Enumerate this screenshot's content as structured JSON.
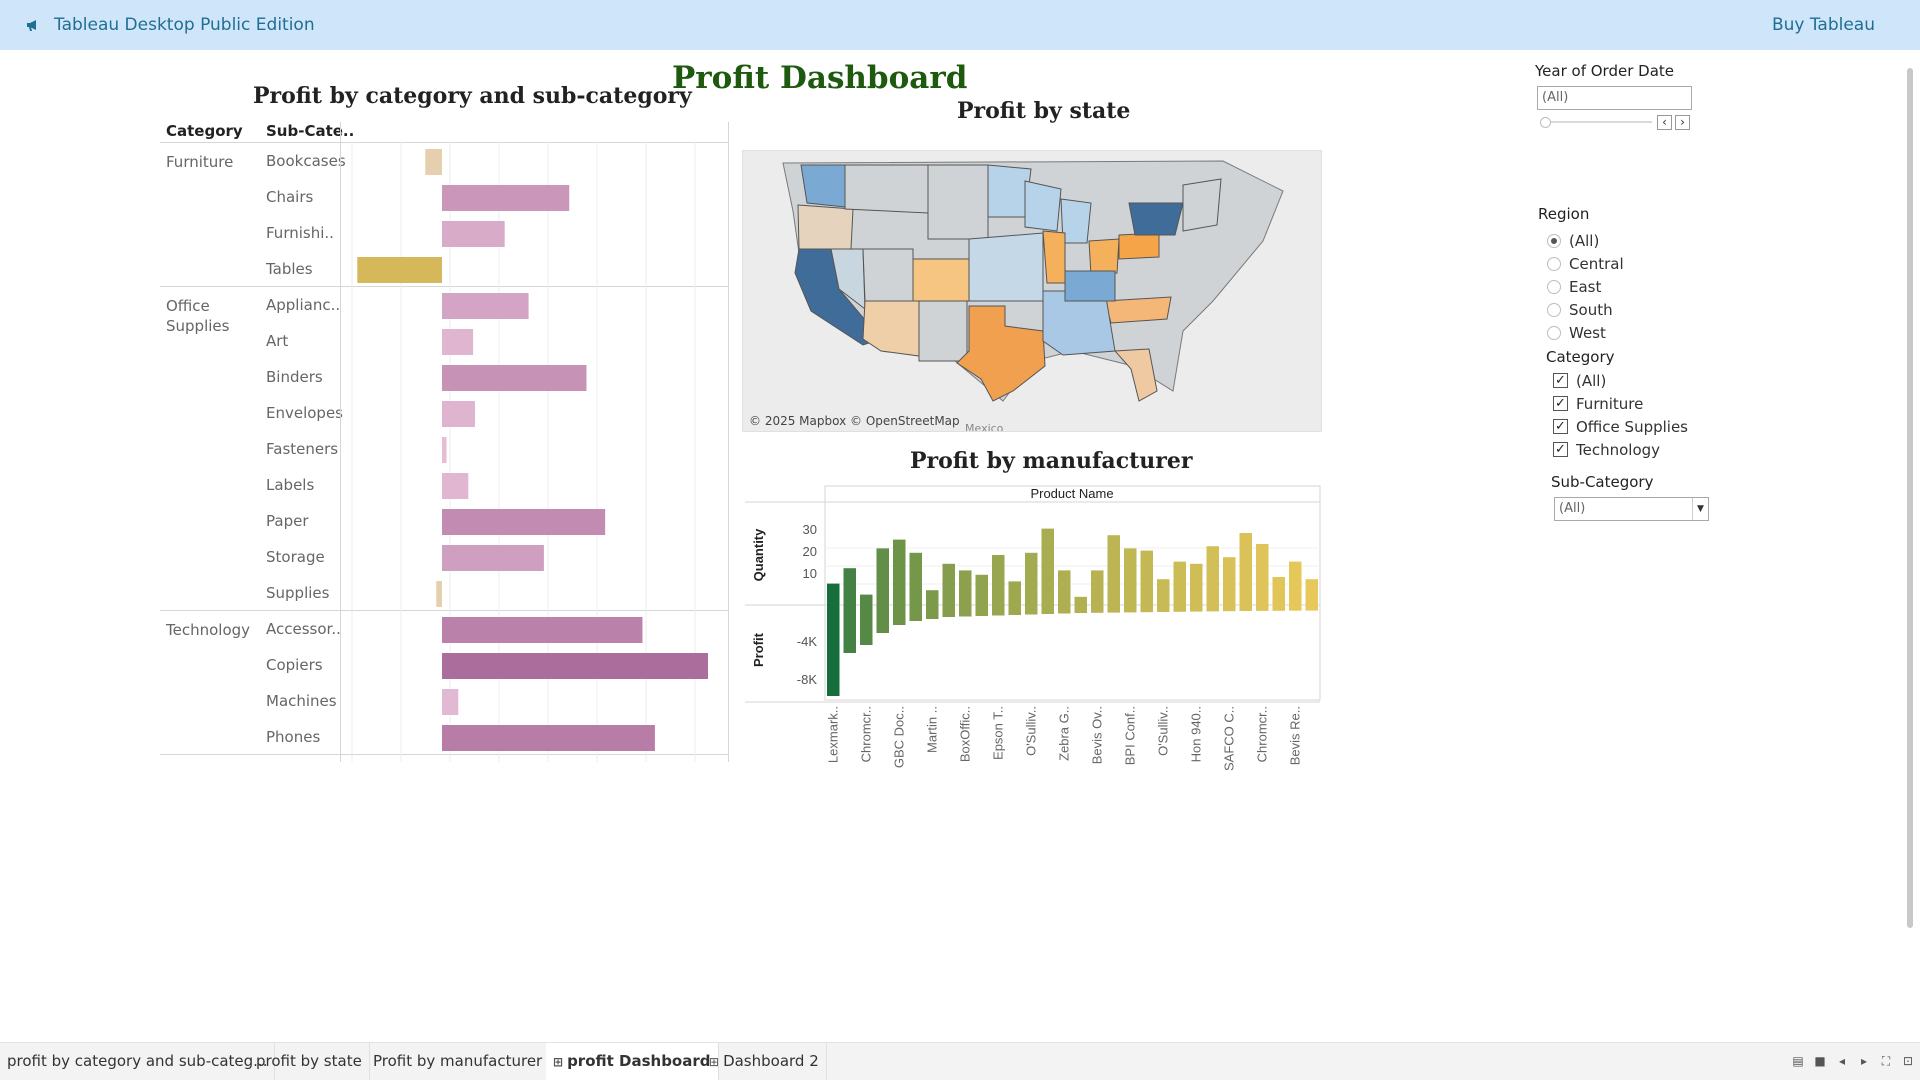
{
  "app": {
    "title": "Tableau Desktop Public Edition",
    "buy": "Buy Tableau"
  },
  "dashboard": {
    "title": "Profit Dashboard"
  },
  "cat_sheet": {
    "title": "Profit by category and sub-category",
    "header_category": "Category",
    "header_subcategory": "Sub-Cate..",
    "groups": [
      {
        "label": "Furniture",
        "items": [
          {
            "label": "Bookcases",
            "profit": -3500
          },
          {
            "label": "Chairs",
            "profit": 26600
          },
          {
            "label": "Furnishi..",
            "profit": 13100
          },
          {
            "label": "Tables",
            "profit": -17700
          }
        ]
      },
      {
        "label": "Office Supplies",
        "items": [
          {
            "label": "Applianc..",
            "profit": 18100
          },
          {
            "label": "Art",
            "profit": 6500
          },
          {
            "label": "Binders",
            "profit": 30200
          },
          {
            "label": "Envelopes",
            "profit": 6900
          },
          {
            "label": "Fasteners",
            "profit": 950
          },
          {
            "label": "Labels",
            "profit": 5500
          },
          {
            "label": "Paper",
            "profit": 34100
          },
          {
            "label": "Storage",
            "profit": 21300
          },
          {
            "label": "Supplies",
            "profit": -1200
          }
        ]
      },
      {
        "label": "Technology",
        "items": [
          {
            "label": "Accessor..",
            "profit": 41900
          },
          {
            "label": "Copiers",
            "profit": 55600
          },
          {
            "label": "Machines",
            "profit": 3400
          },
          {
            "label": "Phones",
            "profit": 44500
          }
        ]
      }
    ]
  },
  "map_sheet": {
    "title": "Profit by state",
    "credit": "© 2025 Mapbox © OpenStreetMap",
    "label_mexico": "Mexico"
  },
  "mfr_sheet": {
    "title": "Profit by manufacturer",
    "header": "Product Name",
    "quantity_axis": "Quantity",
    "profit_axis": "Profit",
    "quantity_ticks": [
      "30",
      "20",
      "10"
    ],
    "profit_ticks": [
      "-4K",
      "-8K"
    ],
    "visible_labels": [
      "Lexmark..",
      "Chromcr..",
      "GBC Doc..",
      "Martin ..",
      "BoxOffic..",
      "Epson T..",
      "O'Sulliv..",
      "Zebra G..",
      "Bevis Ov..",
      "BPI Conf..",
      "O'Sulliv..",
      "Hon 940..",
      "SAFCO C..",
      "Chromcr..",
      "Bevis Re.."
    ]
  },
  "chart_data": [
    {
      "type": "bar",
      "title": "Profit by category and sub-category",
      "categories": [
        "Bookcases",
        "Chairs",
        "Furnishi..",
        "Tables",
        "Applianc..",
        "Art",
        "Binders",
        "Envelopes",
        "Fasteners",
        "Labels",
        "Paper",
        "Storage",
        "Supplies",
        "Accessor..",
        "Copiers",
        "Machines",
        "Phones"
      ],
      "values": [
        -3500,
        26600,
        13100,
        -17700,
        18100,
        6500,
        30200,
        6900,
        950,
        5500,
        34100,
        21300,
        -1200,
        41900,
        55600,
        3400,
        44500
      ],
      "orientation": "horizontal",
      "grid": true
    },
    {
      "type": "bar",
      "title": "Profit by manufacturer",
      "xlabel": "Product Name",
      "n_bars": 30,
      "series": [
        {
          "name": "Quantity",
          "values": [
            12,
            19,
            7,
            28,
            32,
            26,
            9,
            21,
            18,
            16,
            25,
            13,
            26,
            37,
            18,
            6,
            18,
            34,
            28,
            27,
            14,
            22,
            21,
            29,
            24,
            35,
            30,
            15,
            22,
            14
          ]
        },
        {
          "name": "Profit",
          "values": [
            -8600,
            -4300,
            -3500,
            -2300,
            -1500,
            -1100,
            -900,
            -700,
            -650,
            -600,
            -550,
            -500,
            -450,
            -400,
            -350,
            -300,
            -280,
            -260,
            -240,
            -220,
            -200,
            -180,
            -160,
            -140,
            -120,
            -100,
            -90,
            -80,
            -70,
            -60
          ]
        }
      ],
      "ylim_quantity": [
        0,
        40
      ],
      "ylim_profit": [
        -9000,
        0
      ]
    }
  ],
  "filters": {
    "year": {
      "label": "Year of Order Date",
      "value": "(All)"
    },
    "region": {
      "label": "Region",
      "options": [
        "(All)",
        "Central",
        "East",
        "South",
        "West"
      ]
    },
    "category": {
      "label": "Category",
      "options": [
        "(All)",
        "Furniture",
        "Office Supplies",
        "Technology"
      ]
    },
    "subcategory": {
      "label": "Sub-Category",
      "value": "(All)"
    }
  },
  "tabs": [
    {
      "label": "profit by category and sub-categ..."
    },
    {
      "label": "profit by state"
    },
    {
      "label": "Profit by manufacturer"
    },
    {
      "label": "profit Dashboard"
    },
    {
      "label": "Dashboard 2"
    }
  ]
}
